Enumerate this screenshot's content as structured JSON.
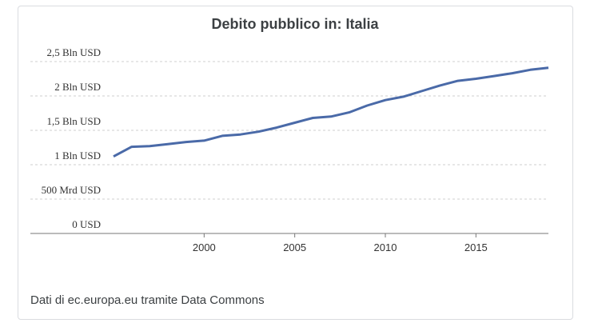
{
  "chart_data": {
    "type": "line",
    "title": "Debito pubblico in: Italia",
    "source": "Dati di ec.europa.eu tramite Data Commons",
    "xlabel": "",
    "ylabel": "",
    "ylim": [
      0,
      2.5
    ],
    "xlim": [
      1995,
      2019
    ],
    "grid": true,
    "y_ticks": [
      {
        "value": 0,
        "label": "0 USD"
      },
      {
        "value": 0.5,
        "label": "500 Mrd USD"
      },
      {
        "value": 1,
        "label": "1 Bln USD"
      },
      {
        "value": 1.5,
        "label": "1,5 Bln USD"
      },
      {
        "value": 2,
        "label": "2 Bln USD"
      },
      {
        "value": 2.5,
        "label": "2,5 Bln USD"
      }
    ],
    "x_ticks": [
      {
        "value": 2000,
        "label": "2000"
      },
      {
        "value": 2005,
        "label": "2005"
      },
      {
        "value": 2010,
        "label": "2010"
      },
      {
        "value": 2015,
        "label": "2015"
      }
    ],
    "series": [
      {
        "color": "#4a6aa8",
        "x": [
          1995,
          1996,
          1997,
          1998,
          1999,
          2000,
          2001,
          2002,
          2003,
          2004,
          2005,
          2006,
          2007,
          2008,
          2009,
          2010,
          2011,
          2012,
          2013,
          2014,
          2015,
          2016,
          2017,
          2018,
          2019
        ],
        "y": [
          1.12,
          1.26,
          1.27,
          1.3,
          1.33,
          1.35,
          1.42,
          1.44,
          1.48,
          1.54,
          1.61,
          1.68,
          1.7,
          1.76,
          1.86,
          1.94,
          1.99,
          2.07,
          2.15,
          2.22,
          2.25,
          2.29,
          2.33,
          2.38,
          2.41
        ]
      }
    ]
  }
}
